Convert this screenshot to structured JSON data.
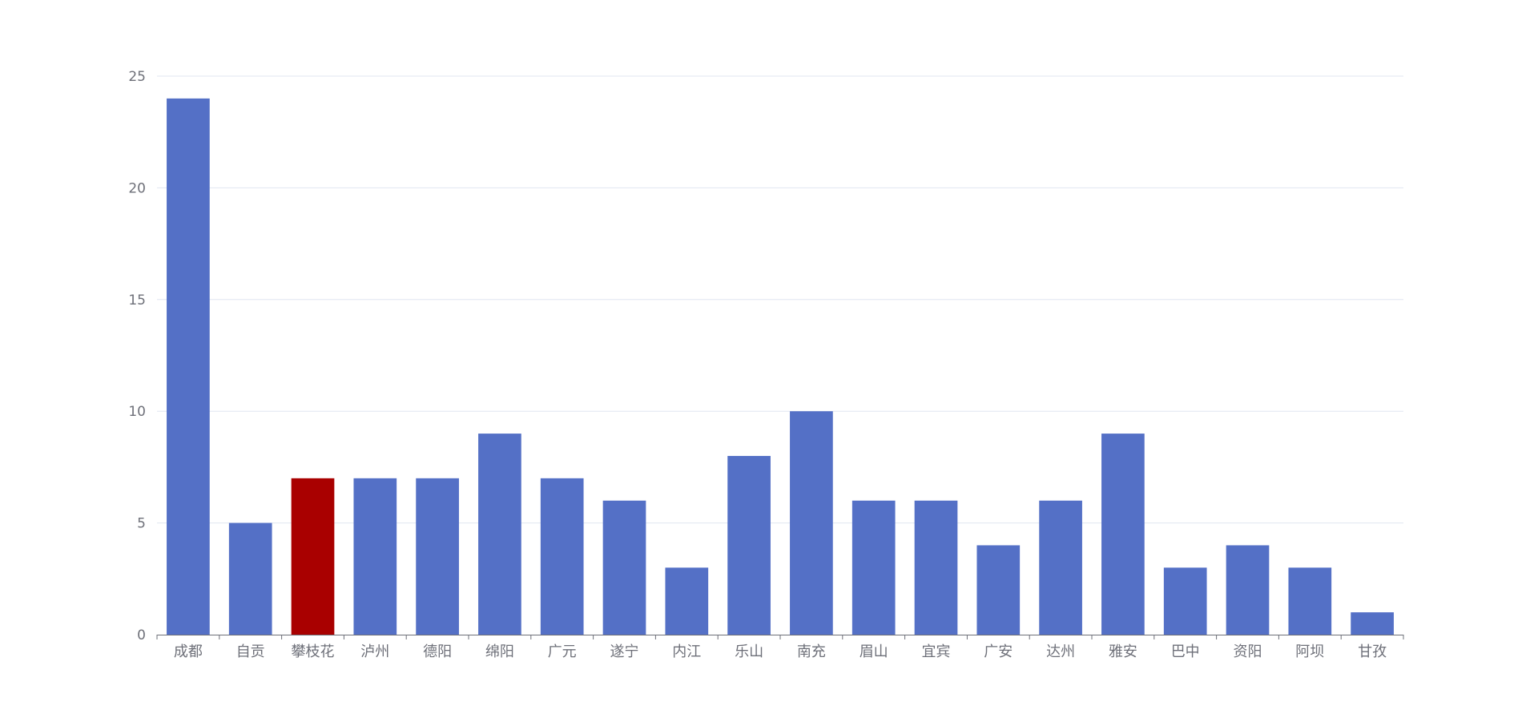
{
  "chart_data": {
    "type": "bar",
    "title": "",
    "xlabel": "",
    "ylabel": "",
    "categories": [
      "成都",
      "自贡",
      "攀枝花",
      "泸州",
      "德阳",
      "绵阳",
      "广元",
      "遂宁",
      "内江",
      "乐山",
      "南充",
      "眉山",
      "宜宾",
      "广安",
      "达州",
      "雅安",
      "巴中",
      "资阳",
      "阿坝",
      "甘孜"
    ],
    "values": [
      24,
      5,
      7,
      7,
      7,
      9,
      7,
      6,
      3,
      8,
      10,
      6,
      6,
      4,
      6,
      9,
      3,
      4,
      3,
      1
    ],
    "highlight_category": "攀枝花",
    "ylim": [
      0,
      25
    ],
    "yticks": [
      0,
      5,
      10,
      15,
      20,
      25
    ],
    "grid": true,
    "legend": "none"
  },
  "colors": {
    "bar": "#5470c6",
    "highlight": "#a90000",
    "grid": "#e0e6f1",
    "axis": "#6e7079",
    "label": "#6e7079"
  }
}
